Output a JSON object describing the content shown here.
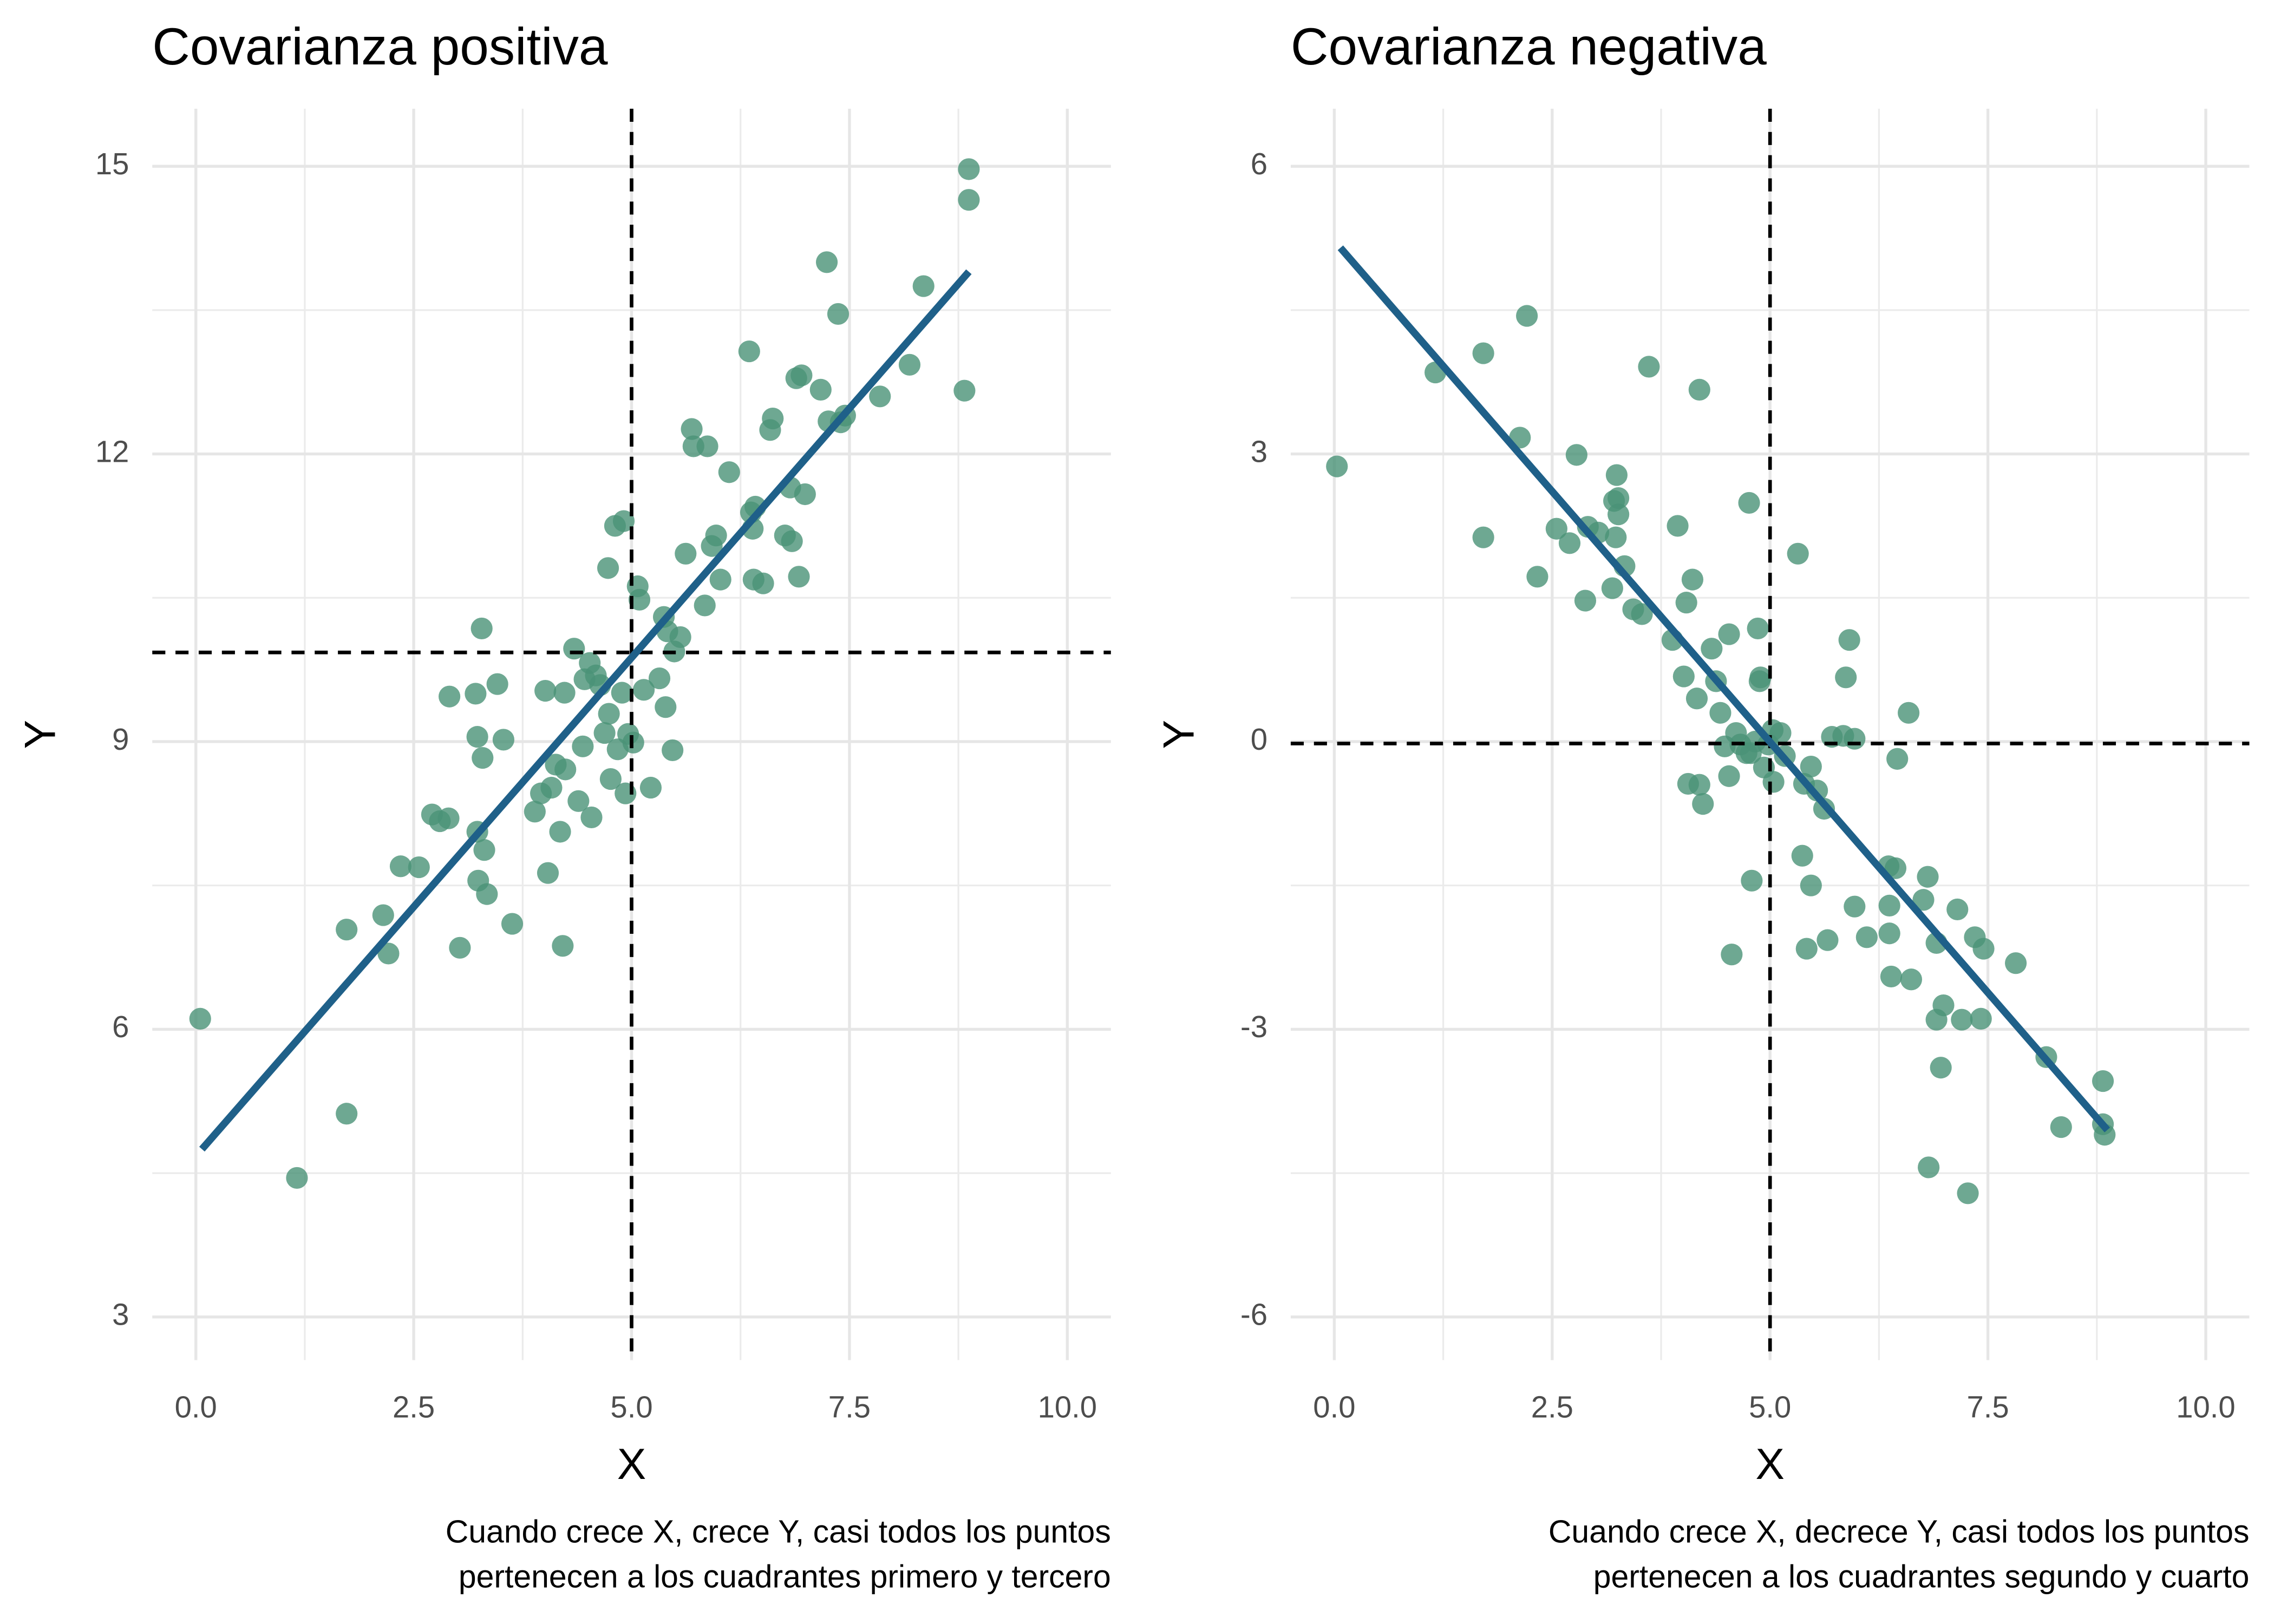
{
  "chart_data": [
    {
      "type": "scatter",
      "title": "Covarianza positiva",
      "x_label": "X",
      "y_label": "Y",
      "caption": [
        "Cuando crece X, crece Y, casi todos los puntos",
        "pertenecen a los cuadrantes primero y tercero"
      ],
      "color": "#4a9277",
      "x": [
        0.05,
        1.16,
        1.73,
        1.73,
        2.15,
        2.21,
        2.35,
        2.56,
        2.71,
        2.8,
        2.9,
        2.91,
        3.03,
        3.21,
        3.23,
        3.24,
        3.23,
        3.28,
        3.29,
        3.31,
        3.34,
        3.46,
        3.53,
        3.63,
        3.89,
        3.96,
        4.01,
        4.04,
        4.08,
        4.13,
        4.18,
        4.21,
        4.23,
        4.24,
        4.34,
        4.39,
        4.44,
        4.46,
        4.52,
        4.54,
        4.59,
        4.64,
        4.69,
        4.73,
        4.74,
        4.76,
        4.81,
        4.84,
        4.89,
        4.91,
        4.93,
        4.96,
        5.02,
        5.07,
        5.09,
        5.14,
        5.22,
        5.32,
        5.37,
        5.39,
        5.41,
        5.47,
        5.49,
        5.56,
        5.62,
        5.69,
        5.71,
        5.84,
        5.87,
        5.92,
        5.97,
        6.02,
        6.12,
        6.35,
        6.37,
        6.39,
        6.4,
        6.42,
        6.51,
        6.59,
        6.62,
        6.76,
        6.82,
        6.84,
        6.89,
        6.92,
        6.95,
        6.99,
        7.17,
        7.24,
        7.26,
        7.37,
        7.4,
        7.45,
        7.85,
        8.19,
        8.35,
        8.82,
        8.87,
        8.87
      ],
      "values": [
        6.11,
        4.45,
        5.12,
        7.04,
        7.19,
        6.79,
        7.7,
        7.69,
        8.24,
        8.17,
        8.2,
        9.47,
        6.85,
        9.5,
        8.06,
        7.55,
        9.05,
        10.18,
        8.83,
        7.87,
        7.41,
        9.6,
        9.02,
        7.1,
        8.27,
        8.46,
        9.53,
        7.63,
        8.52,
        8.76,
        8.06,
        6.87,
        9.51,
        8.71,
        9.97,
        8.38,
        8.95,
        9.65,
        9.82,
        8.21,
        9.69,
        9.59,
        9.09,
        10.81,
        9.29,
        8.61,
        11.25,
        8.92,
        9.51,
        11.3,
        8.46,
        9.08,
        8.99,
        10.62,
        10.48,
        9.54,
        8.52,
        9.66,
        10.3,
        9.36,
        10.15,
        8.91,
        9.94,
        10.09,
        10.96,
        12.26,
        12.08,
        10.42,
        12.08,
        11.04,
        11.15,
        10.69,
        11.81,
        13.07,
        11.39,
        11.22,
        10.69,
        11.45,
        10.65,
        12.25,
        12.37,
        11.15,
        11.65,
        11.09,
        12.79,
        10.72,
        12.82,
        11.58,
        12.67,
        14.0,
        12.34,
        13.46,
        12.33,
        12.4,
        12.6,
        12.93,
        13.75,
        12.66,
        14.97,
        14.65
      ],
      "fit_line": {
        "color": "#1f6089",
        "x": [
          0.07,
          8.87
        ],
        "y": [
          4.75,
          13.9
        ]
      },
      "x_mean": 5,
      "y_mean": 9.93,
      "xlim": [
        -0.5,
        10.5
      ],
      "ylim": [
        2.55,
        15.6
      ],
      "xticks": [
        {
          "value": 0,
          "label": "0.0"
        },
        2.5,
        {
          "value": 5,
          "label": "5.0"
        },
        7.5,
        {
          "value": 10,
          "label": "10.0"
        }
      ],
      "yticks": [
        3,
        6,
        9,
        12,
        15
      ],
      "grid": true,
      "minor_grid": true
    },
    {
      "type": "scatter",
      "title": "Covarianza negativa",
      "x_label": "X",
      "y_label": "Y",
      "caption": [
        "Cuando crece X, decrece Y, casi todos los puntos",
        "pertenecen a los cuadrantes segundo y cuarto"
      ],
      "color": "#4a9277",
      "x": [
        0.03,
        1.16,
        1.71,
        1.71,
        2.13,
        2.21,
        2.33,
        2.55,
        2.7,
        2.78,
        2.88,
        2.91,
        3.03,
        3.19,
        3.21,
        3.23,
        3.24,
        3.26,
        3.26,
        3.33,
        3.43,
        3.53,
        3.61,
        3.88,
        3.94,
        4.01,
        4.04,
        4.06,
        4.11,
        4.16,
        4.19,
        4.19,
        4.23,
        4.33,
        4.38,
        4.43,
        4.48,
        4.53,
        4.53,
        4.56,
        4.61,
        4.66,
        4.73,
        4.76,
        4.78,
        4.79,
        4.83,
        4.86,
        4.88,
        4.89,
        4.93,
        4.98,
        5.03,
        5.04,
        5.12,
        5.17,
        5.32,
        5.37,
        5.39,
        5.42,
        5.47,
        5.47,
        5.54,
        5.62,
        5.66,
        5.71,
        5.84,
        5.87,
        5.91,
        5.97,
        5.97,
        6.11,
        6.36,
        6.37,
        6.37,
        6.39,
        6.44,
        6.46,
        6.59,
        6.62,
        6.76,
        6.81,
        6.82,
        6.91,
        6.91,
        6.96,
        6.99,
        7.15,
        7.2,
        7.27,
        7.35,
        7.42,
        7.45,
        7.82,
        8.17,
        8.34,
        8.82,
        8.82,
        8.84
      ],
      "values": [
        2.87,
        3.85,
        4.05,
        2.13,
        3.17,
        4.44,
        1.72,
        2.22,
        2.07,
        2.99,
        1.47,
        2.24,
        2.18,
        1.6,
        2.51,
        2.13,
        2.78,
        2.37,
        2.54,
        1.83,
        1.38,
        1.33,
        3.91,
        1.06,
        2.25,
        0.68,
        1.45,
        -0.44,
        1.69,
        0.45,
        -0.45,
        3.67,
        -0.65,
        0.97,
        0.63,
        0.3,
        -0.05,
        1.12,
        -0.36,
        -2.22,
        0.09,
        -0.03,
        -0.12,
        2.49,
        -0.12,
        -1.45,
        0.0,
        1.18,
        0.63,
        0.67,
        -0.27,
        -0.03,
        0.12,
        -0.42,
        0.09,
        -0.15,
        1.96,
        -1.19,
        -0.44,
        -2.16,
        -0.26,
        -1.5,
        -0.51,
        -0.7,
        -2.07,
        0.05,
        0.06,
        0.67,
        1.06,
        0.03,
        -1.72,
        -2.04,
        -1.3,
        -1.71,
        -2.0,
        -2.45,
        -1.32,
        -0.18,
        0.3,
        -2.48,
        -1.65,
        -1.41,
        -4.44,
        -2.1,
        -2.9,
        -3.4,
        -2.75,
        -1.75,
        -2.9,
        -4.71,
        -2.04,
        -2.89,
        -2.16,
        -2.31,
        -3.29,
        -4.02,
        -3.54,
        -3.99,
        -4.1
      ],
      "fit_line": {
        "color": "#1f6089",
        "x": [
          0.07,
          8.87
        ],
        "y": [
          5.15,
          -4.05
        ]
      },
      "x_mean": 5,
      "y_mean": -0.02,
      "xlim": [
        -0.5,
        10.5
      ],
      "ylim": [
        -6.45,
        6.6
      ],
      "xticks": [
        {
          "value": 0,
          "label": "0.0"
        },
        2.5,
        {
          "value": 5,
          "label": "5.0"
        },
        7.5,
        {
          "value": 10,
          "label": "10.0"
        }
      ],
      "yticks": [
        -6,
        -3,
        0,
        3,
        6
      ],
      "grid": true,
      "minor_grid": true
    }
  ]
}
